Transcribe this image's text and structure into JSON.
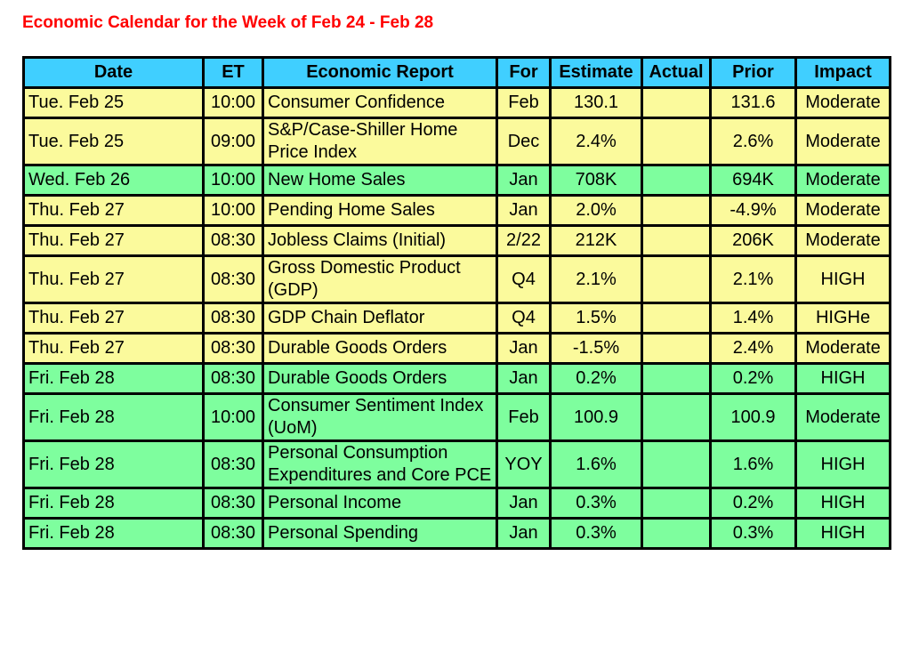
{
  "title": "Economic Calendar for the Week of Feb 24 - Feb 28",
  "colors": {
    "title": "#ff0000",
    "header": "#40cfff",
    "yellow_row": "#fbfa9c",
    "green_row": "#7efe9e"
  },
  "columns": [
    "Date",
    "ET",
    "Economic Report",
    "For",
    "Estimate",
    "Actual",
    "Prior",
    "Impact"
  ],
  "rows": [
    {
      "color": "y",
      "date": "Tue. Feb 25",
      "et": "10:00",
      "report": "Consumer Confidence",
      "for": "Feb",
      "estimate": "130.1",
      "actual": "",
      "prior": "131.6",
      "impact": "Moderate"
    },
    {
      "color": "y",
      "date": "Tue. Feb 25",
      "et": "09:00",
      "report": "S&P/Case-Shiller Home Price Index",
      "for": "Dec",
      "estimate": "2.4%",
      "actual": "",
      "prior": "2.6%",
      "impact": "Moderate"
    },
    {
      "color": "g",
      "date": "Wed. Feb 26",
      "et": "10:00",
      "report": "New Home Sales",
      "for": "Jan",
      "estimate": "708K",
      "actual": "",
      "prior": "694K",
      "impact": "Moderate"
    },
    {
      "color": "y",
      "date": "Thu. Feb 27",
      "et": "10:00",
      "report": "Pending Home Sales",
      "for": "Jan",
      "estimate": "2.0%",
      "actual": "",
      "prior": "-4.9%",
      "impact": "Moderate"
    },
    {
      "color": "y",
      "date": "Thu. Feb 27",
      "et": "08:30",
      "report": "Jobless Claims (Initial)",
      "for": "2/22",
      "estimate": "212K",
      "actual": "",
      "prior": "206K",
      "impact": "Moderate"
    },
    {
      "color": "y",
      "date": "Thu. Feb 27",
      "et": "08:30",
      "report": "Gross Domestic Product (GDP)",
      "for": "Q4",
      "estimate": "2.1%",
      "actual": "",
      "prior": "2.1%",
      "impact": "HIGH"
    },
    {
      "color": "y",
      "date": "Thu. Feb 27",
      "et": "08:30",
      "report": "GDP Chain Deflator",
      "for": "Q4",
      "estimate": "1.5%",
      "actual": "",
      "prior": "1.4%",
      "impact": "HIGHe"
    },
    {
      "color": "y",
      "date": "Thu. Feb 27",
      "et": "08:30",
      "report": "Durable Goods Orders",
      "for": "Jan",
      "estimate": "-1.5%",
      "actual": "",
      "prior": "2.4%",
      "impact": "Moderate"
    },
    {
      "color": "g",
      "date": "Fri. Feb 28",
      "et": "08:30",
      "report": "Durable Goods Orders",
      "for": "Jan",
      "estimate": "0.2%",
      "actual": "",
      "prior": "0.2%",
      "impact": "HIGH"
    },
    {
      "color": "g",
      "date": "Fri. Feb 28",
      "et": "10:00",
      "report": "Consumer Sentiment Index (UoM)",
      "for": "Feb",
      "estimate": "100.9",
      "actual": "",
      "prior": "100.9",
      "impact": "Moderate"
    },
    {
      "color": "g",
      "date": "Fri. Feb 28",
      "et": "08:30",
      "report": "Personal Consumption Expenditures and Core PCE",
      "for": "YOY",
      "estimate": "1.6%",
      "actual": "",
      "prior": "1.6%",
      "impact": "HIGH"
    },
    {
      "color": "g",
      "date": "Fri. Feb 28",
      "et": "08:30",
      "report": "Personal Income",
      "for": "Jan",
      "estimate": "0.3%",
      "actual": "",
      "prior": "0.2%",
      "impact": "HIGH"
    },
    {
      "color": "g",
      "date": "Fri. Feb 28",
      "et": "08:30",
      "report": "Personal Spending",
      "for": "Jan",
      "estimate": "0.3%",
      "actual": "",
      "prior": "0.3%",
      "impact": "HIGH"
    }
  ]
}
